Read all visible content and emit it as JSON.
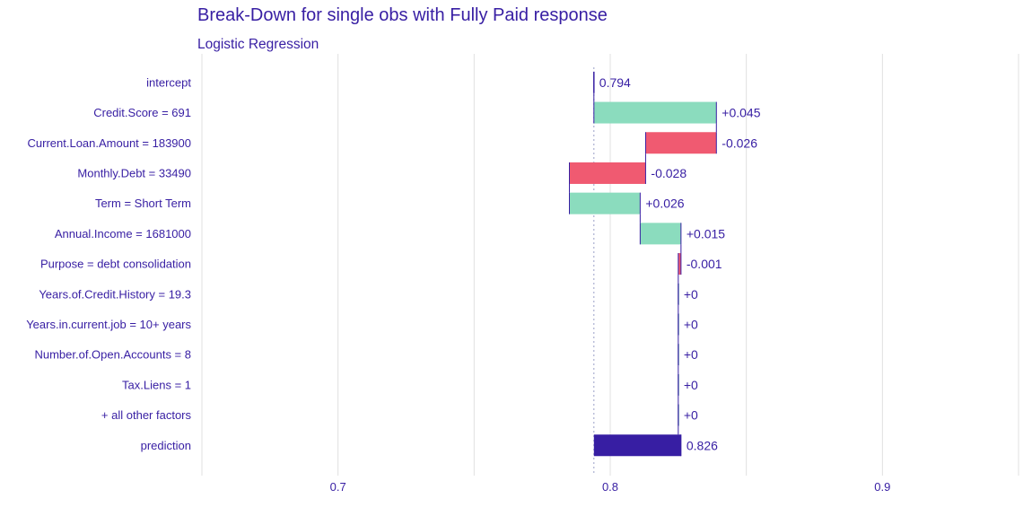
{
  "chart_data": {
    "type": "waterfall",
    "title": "Break-Down for single obs with Fully Paid response",
    "subtitle": "Logistic Regression",
    "xlim": [
      0.65,
      0.95
    ],
    "x_ticks": [
      0.7,
      0.8,
      0.9
    ],
    "x_tick_labels": [
      "0.7",
      "0.8",
      "0.9"
    ],
    "grid": true,
    "baseline": 0.794,
    "rows": [
      {
        "label": "intercept",
        "start": 0.794,
        "end": 0.794,
        "contribution_label": "0.794",
        "kind": "intercept"
      },
      {
        "label": "Credit.Score = 691",
        "start": 0.794,
        "end": 0.839,
        "contribution_label": "+0.045",
        "kind": "positive"
      },
      {
        "label": "Current.Loan.Amount = 183900",
        "start": 0.839,
        "end": 0.813,
        "contribution_label": "-0.026",
        "kind": "negative"
      },
      {
        "label": "Monthly.Debt = 33490",
        "start": 0.813,
        "end": 0.785,
        "contribution_label": "-0.028",
        "kind": "negative"
      },
      {
        "label": "Term = Short Term",
        "start": 0.785,
        "end": 0.811,
        "contribution_label": "+0.026",
        "kind": "positive"
      },
      {
        "label": "Annual.Income = 1681000",
        "start": 0.811,
        "end": 0.826,
        "contribution_label": "+0.015",
        "kind": "positive"
      },
      {
        "label": "Purpose = debt consolidation",
        "start": 0.826,
        "end": 0.825,
        "contribution_label": "-0.001",
        "kind": "negative"
      },
      {
        "label": "Years.of.Credit.History = 19.3",
        "start": 0.825,
        "end": 0.825,
        "contribution_label": "+0",
        "kind": "positive"
      },
      {
        "label": "Years.in.current.job = 10+ years",
        "start": 0.825,
        "end": 0.825,
        "contribution_label": "+0",
        "kind": "positive"
      },
      {
        "label": "Number.of.Open.Accounts = 8",
        "start": 0.825,
        "end": 0.825,
        "contribution_label": "+0",
        "kind": "positive"
      },
      {
        "label": "Tax.Liens = 1",
        "start": 0.825,
        "end": 0.825,
        "contribution_label": "+0",
        "kind": "positive"
      },
      {
        "label": "+ all other factors",
        "start": 0.825,
        "end": 0.825,
        "contribution_label": "+0",
        "kind": "positive"
      },
      {
        "label": "prediction",
        "start": 0.794,
        "end": 0.826,
        "contribution_label": "0.826",
        "kind": "prediction"
      }
    ],
    "colors": {
      "positive": "#8bdcbe",
      "negative": "#f05a71",
      "prediction": "#371ea3",
      "connector": "#371ea3",
      "text": "#371ea3",
      "grid": "#e0e0e0",
      "baseline": "#9aa0c8"
    }
  }
}
